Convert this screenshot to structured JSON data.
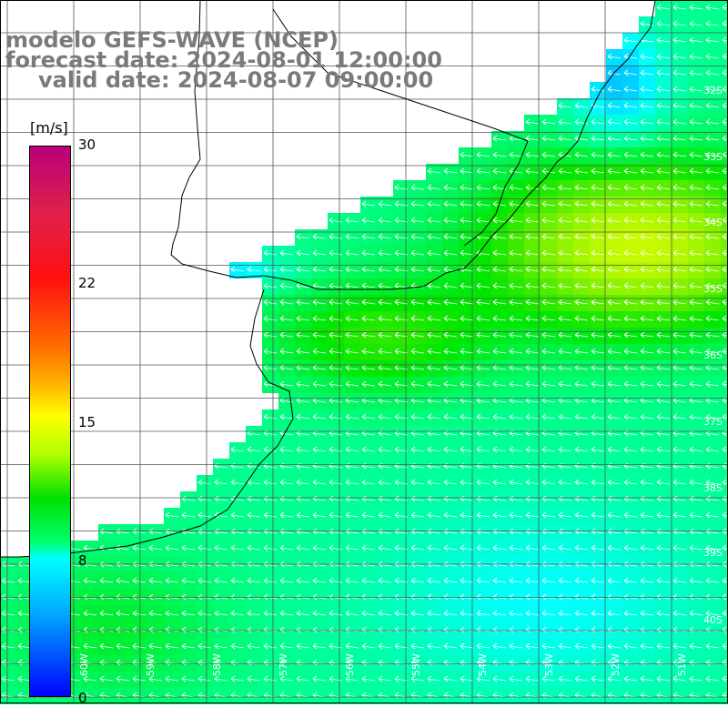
{
  "title": {
    "line1": "modelo GEFS-WAVE (NCEP)",
    "line2": "forecast date: 2024-08-01 12:00:00",
    "line3": "valid date: 2024-08-07 09:00:00"
  },
  "colorbar": {
    "unit": "[m/s]",
    "ticks": [
      "30",
      "22",
      "15",
      "8",
      "0"
    ],
    "tick_values": [
      30,
      22,
      15,
      8,
      0
    ]
  },
  "lat_labels": [
    "32S",
    "33S",
    "34S",
    "35S",
    "36S",
    "37S",
    "38S",
    "39S",
    "40S"
  ],
  "lon_labels": [
    "60W",
    "59W",
    "58W",
    "57W",
    "56W",
    "55W",
    "54W",
    "53W",
    "52W",
    "51W"
  ],
  "colors": {
    "land": "#ffffff",
    "coastline": "#000000",
    "grid": "#555555",
    "arrows": "#ffffff",
    "title_text": "#7a7a7a"
  },
  "chart_data": {
    "type": "heatmap",
    "variable": "wind speed",
    "units": "m/s",
    "color_range": [
      0,
      30
    ],
    "latitude_range": [
      "31S",
      "41S"
    ],
    "longitude_range": [
      "61W",
      "50W"
    ],
    "regions": [
      {
        "area": "offshore east (33S-35S)",
        "speed_ms": 14
      },
      {
        "area": "river plate estuary",
        "speed_ms": 11
      },
      {
        "area": "coast near 32S",
        "speed_ms": 7
      },
      {
        "area": "south (38S-41S)",
        "speed_ms": 9
      },
      {
        "area": "southwest shelf",
        "speed_ms": 10
      }
    ],
    "wind_direction": "from the east (arrows pointing west)"
  }
}
